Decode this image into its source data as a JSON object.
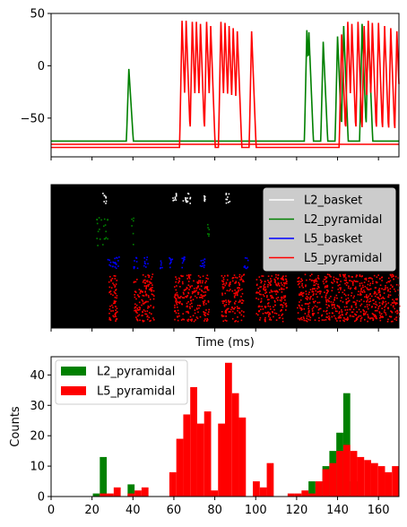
{
  "chart_data": [
    {
      "type": "line",
      "title": "",
      "xlabel": "",
      "ylabel": "",
      "xlim": [
        0,
        170
      ],
      "ylim": [
        -87,
        50
      ],
      "yticks": [
        50,
        0,
        -50
      ],
      "ytick_labels": [
        "50",
        "0",
        "−50"
      ],
      "show_xtick_labels": false,
      "series": [
        {
          "color": "#008000",
          "baseline": -72,
          "spikes": [
            [
              38,
              -3
            ],
            [
              125,
              34
            ],
            [
              126,
              32
            ],
            [
              133,
              23
            ],
            [
              140,
              28
            ],
            [
              143,
              38
            ],
            [
              152,
              40
            ],
            [
              155,
              36
            ]
          ]
        },
        {
          "color": "#ff0000",
          "baseline": -78,
          "spikes": [
            [
              64,
              43
            ],
            [
              66,
              43
            ],
            [
              69,
              42
            ],
            [
              71,
              42
            ],
            [
              73,
              40
            ],
            [
              76,
              42
            ],
            [
              78,
              38
            ],
            [
              83,
              42
            ],
            [
              85,
              41
            ],
            [
              87,
              38
            ],
            [
              89,
              36
            ],
            [
              91,
              33
            ],
            [
              98,
              33
            ],
            [
              142,
              30
            ],
            [
              145,
              42
            ],
            [
              147,
              40
            ],
            [
              150,
              42
            ],
            [
              153,
              38
            ],
            [
              155,
              43
            ],
            [
              157,
              41
            ],
            [
              160,
              41
            ],
            [
              163,
              38
            ],
            [
              166,
              36
            ],
            [
              169,
              33
            ]
          ]
        },
        {
          "color": "#ff0000",
          "baseline": -75,
          "spikes": []
        }
      ]
    },
    {
      "type": "scatter",
      "title": "",
      "xlabel": "Time (ms)",
      "ylabel": "",
      "xlim": [
        0,
        170
      ],
      "ylim": [
        0,
        100
      ],
      "background": "#000000",
      "show_xtick_labels": false,
      "legend_position": "top-right",
      "series": [
        {
          "name": "L2_basket",
          "color": "#ffffff",
          "y_range": [
            87,
            95
          ],
          "x_clusters": [
            [
              25,
              27
            ],
            [
              59,
              61
            ],
            [
              64,
              68
            ],
            [
              74,
              75
            ],
            [
              85,
              87
            ]
          ]
        },
        {
          "name": "L2_pyramidal",
          "color": "#008000",
          "y_range": [
            58,
            78
          ],
          "x_clusters": [
            [
              22,
              28
            ],
            [
              39,
              40
            ],
            [
              76,
              77
            ]
          ]
        },
        {
          "name": "L5_basket",
          "color": "#0000ff",
          "y_range": [
            42,
            50
          ],
          "x_clusters": [
            [
              27,
              33
            ],
            [
              40,
              42
            ],
            [
              45,
              47
            ],
            [
              53,
              54
            ],
            [
              57,
              59
            ],
            [
              63,
              65
            ],
            [
              72,
              75
            ],
            [
              94,
              96
            ]
          ]
        },
        {
          "name": "L5_pyramidal",
          "color": "#ff0000",
          "y_range": [
            5,
            38
          ],
          "x_clusters": [
            [
              28,
              32
            ],
            [
              40,
              50
            ],
            [
              60,
              77
            ],
            [
              83,
              94
            ],
            [
              100,
              115
            ],
            [
              120,
              170
            ]
          ]
        }
      ]
    },
    {
      "type": "bar",
      "title": "",
      "xlabel": "",
      "ylabel": "Counts",
      "xlim": [
        0,
        170
      ],
      "ylim": [
        0,
        46
      ],
      "bin_width": 3.4,
      "xticks": [
        0,
        20,
        40,
        60,
        80,
        100,
        120,
        140,
        160
      ],
      "yticks": [
        0,
        10,
        20,
        30,
        40
      ],
      "legend_position": "top-left",
      "series": [
        {
          "name": "L2_pyramidal",
          "color": "#008000",
          "bins": [
            [
              20.4,
              1
            ],
            [
              23.8,
              13
            ],
            [
              37.4,
              4
            ],
            [
              125.8,
              5
            ],
            [
              129.2,
              3
            ],
            [
              132.6,
              10
            ],
            [
              136.0,
              15
            ],
            [
              139.4,
              21
            ],
            [
              142.8,
              34
            ],
            [
              146.2,
              5
            ]
          ]
        },
        {
          "name": "L5_pyramidal",
          "color": "#ff0000",
          "bins": [
            [
              23.8,
              1
            ],
            [
              27.2,
              1
            ],
            [
              30.6,
              3
            ],
            [
              37.4,
              1
            ],
            [
              40.8,
              2
            ],
            [
              44.2,
              3
            ],
            [
              57.8,
              8
            ],
            [
              61.2,
              19
            ],
            [
              64.6,
              27
            ],
            [
              68.0,
              36
            ],
            [
              71.4,
              24
            ],
            [
              74.8,
              28
            ],
            [
              78.2,
              2
            ],
            [
              81.6,
              24
            ],
            [
              85.0,
              44
            ],
            [
              88.4,
              34
            ],
            [
              91.8,
              26
            ],
            [
              98.6,
              5
            ],
            [
              102.0,
              3
            ],
            [
              105.4,
              11
            ],
            [
              115.6,
              1
            ],
            [
              119.0,
              1
            ],
            [
              122.4,
              2
            ],
            [
              125.8,
              1
            ],
            [
              129.2,
              5
            ],
            [
              132.6,
              9
            ],
            [
              136.0,
              11
            ],
            [
              139.4,
              15
            ],
            [
              142.8,
              17
            ],
            [
              146.2,
              15
            ],
            [
              149.6,
              13
            ],
            [
              153.0,
              12
            ],
            [
              156.4,
              11
            ],
            [
              159.8,
              10
            ],
            [
              163.2,
              8
            ],
            [
              166.6,
              10
            ]
          ]
        }
      ]
    }
  ]
}
